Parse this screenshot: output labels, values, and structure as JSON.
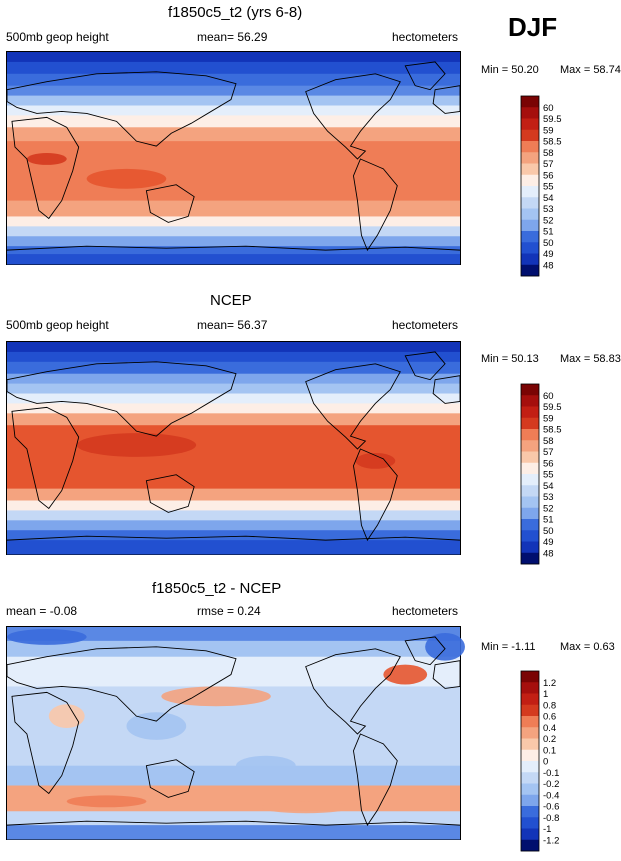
{
  "season": "DJF",
  "colors": {
    "warm": [
      "#fbe4d2",
      "#f9c8aa",
      "#f4a37f",
      "#ef7d56",
      "#e5552f",
      "#d43a1f",
      "#c21f14",
      "#a50f0d",
      "#7a0404"
    ],
    "neutral_pos": "#fdeee6",
    "neutral_neg": "#e4eefb",
    "cool": [
      "#c4d8f5",
      "#a4c4f2",
      "#7ea6ec",
      "#5a88e4",
      "#3a6cdc",
      "#2250d0",
      "#1234b8",
      "#071c92",
      "#000f6e"
    ],
    "land": "#000000"
  },
  "chart_data": [
    {
      "type": "heatmap",
      "id": "model",
      "title": "f1850c5_t2 (yrs 6-8)",
      "left_label": "500mb geop height",
      "center_label": "mean=  56.29",
      "right_label": "hectometers",
      "min_label": "Min =  50.20",
      "max_label": "Max =  58.74",
      "min": 50.2,
      "max": 58.74,
      "mean": 56.29,
      "units": "hectometers",
      "colorbar_levels": [
        "60",
        "59.5",
        "59",
        "58.5",
        "58",
        "57",
        "56",
        "55",
        "54",
        "53",
        "52",
        "51",
        "50",
        "49",
        "48"
      ]
    },
    {
      "type": "heatmap",
      "id": "ncep",
      "title": "NCEP",
      "left_label": "500mb geop height",
      "center_label": "mean=  56.37",
      "right_label": "hectometers",
      "min_label": "Min =  50.13",
      "max_label": "Max =  58.83",
      "min": 50.13,
      "max": 58.83,
      "mean": 56.37,
      "units": "hectometers",
      "colorbar_levels": [
        "60",
        "59.5",
        "59",
        "58.5",
        "58",
        "57",
        "56",
        "55",
        "54",
        "53",
        "52",
        "51",
        "50",
        "49",
        "48"
      ]
    },
    {
      "type": "heatmap",
      "id": "diff",
      "title": "f1850c5_t2 - NCEP",
      "left_label": "mean =  -0.08",
      "center_label": "rmse =   0.24",
      "right_label": "hectometers",
      "min_label": "Min =  -1.11",
      "max_label": "Max =   0.63",
      "min": -1.11,
      "max": 0.63,
      "mean": -0.08,
      "rmse": 0.24,
      "units": "hectometers",
      "colorbar_levels": [
        "1.2",
        "1",
        "0.8",
        "0.6",
        "0.4",
        "0.2",
        "0.1",
        "0",
        "-0.1",
        "-0.2",
        "-0.4",
        "-0.6",
        "-0.8",
        "-1",
        "-1.2"
      ]
    }
  ]
}
